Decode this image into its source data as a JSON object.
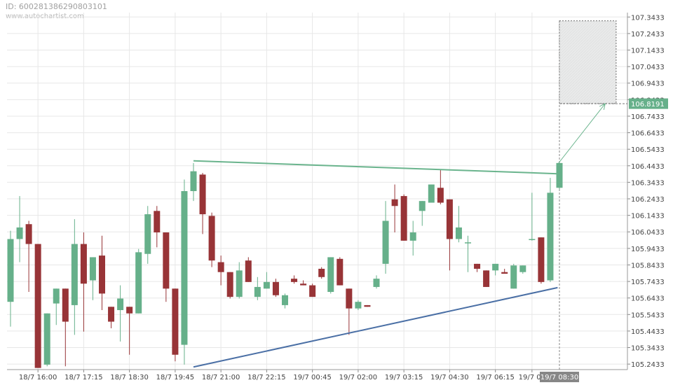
{
  "header": {
    "id_text": "ID: 600281386290803101",
    "watermark": "www.autochartist.com"
  },
  "chart_data": {
    "type": "candlestick",
    "title": "",
    "xlabel": "",
    "ylabel": "",
    "ylim": [
      105.21,
      107.37
    ],
    "y_ticks": [
      "107.3433",
      "107.2433",
      "107.1433",
      "107.0433",
      "106.9433",
      "106.8433",
      "106.7433",
      "106.6433",
      "106.5433",
      "106.4433",
      "106.3433",
      "106.2433",
      "106.1433",
      "106.0433",
      "105.9433",
      "105.8433",
      "105.7433",
      "105.6433",
      "105.5433",
      "105.4433",
      "105.3433",
      "105.2433"
    ],
    "x_ticks": [
      {
        "i": 3,
        "label": "18/7 16:00"
      },
      {
        "i": 8,
        "label": "18/7 17:15"
      },
      {
        "i": 13,
        "label": "18/7 18:30"
      },
      {
        "i": 18,
        "label": "18/7 19:45"
      },
      {
        "i": 23,
        "label": "18/7 21:00"
      },
      {
        "i": 28,
        "label": "18/7 22:15"
      },
      {
        "i": 33,
        "label": "19/7 00:45"
      },
      {
        "i": 38,
        "label": "19/7 02:00"
      },
      {
        "i": 43,
        "label": "19/7 03:15"
      },
      {
        "i": 48,
        "label": "19/7 04:30"
      },
      {
        "i": 53,
        "label": "19/7 06:15"
      },
      {
        "i": 57,
        "label": "19/7 07"
      }
    ],
    "current_time_label": "19/7 08:30",
    "candles": [
      [
        105.62,
        106.0,
        106.05,
        105.47
      ],
      [
        106.0,
        106.07,
        106.26,
        105.86
      ],
      [
        106.09,
        105.97,
        106.11,
        105.68
      ],
      [
        105.97,
        105.22,
        105.97,
        105.22
      ],
      [
        105.24,
        105.55,
        105.55,
        105.23
      ],
      [
        105.61,
        105.7,
        105.7,
        105.48
      ],
      [
        105.7,
        105.5,
        105.7,
        105.23
      ],
      [
        105.6,
        105.97,
        106.12,
        105.42
      ],
      [
        105.97,
        105.73,
        106.04,
        105.44
      ],
      [
        105.75,
        105.89,
        105.89,
        105.63
      ],
      [
        105.9,
        105.67,
        106.02,
        105.57
      ],
      [
        105.59,
        105.5,
        105.59,
        105.46
      ],
      [
        105.57,
        105.64,
        105.72,
        105.38
      ],
      [
        105.59,
        105.55,
        105.59,
        105.3
      ],
      [
        105.55,
        105.92,
        105.94,
        105.55
      ],
      [
        105.91,
        106.15,
        106.2,
        105.85
      ],
      [
        106.17,
        106.04,
        106.2,
        105.95
      ],
      [
        106.04,
        105.7,
        106.04,
        105.62
      ],
      [
        105.7,
        105.3,
        105.7,
        105.26
      ],
      [
        105.36,
        106.29,
        106.36,
        105.24
      ],
      [
        106.29,
        106.41,
        106.46,
        106.23
      ],
      [
        106.39,
        106.15,
        106.4,
        106.03
      ],
      [
        106.14,
        105.87,
        106.16,
        105.83
      ],
      [
        105.86,
        105.8,
        105.9,
        105.72
      ],
      [
        105.8,
        105.65,
        105.8,
        105.64
      ],
      [
        105.65,
        105.81,
        105.86,
        105.64
      ],
      [
        105.87,
        105.74,
        105.89,
        105.74
      ],
      [
        105.65,
        105.71,
        105.77,
        105.63
      ],
      [
        105.7,
        105.74,
        105.8,
        105.7
      ],
      [
        105.74,
        105.66,
        105.76,
        105.65
      ],
      [
        105.6,
        105.66,
        105.67,
        105.58
      ],
      [
        105.76,
        105.74,
        105.78,
        105.73
      ],
      [
        105.73,
        105.72,
        105.75,
        105.72
      ],
      [
        105.72,
        105.65,
        105.73,
        105.65
      ],
      [
        105.82,
        105.77,
        105.83,
        105.76
      ],
      [
        105.68,
        105.89,
        105.89,
        105.67
      ],
      [
        105.88,
        105.72,
        105.89,
        105.72
      ],
      [
        105.7,
        105.58,
        105.7,
        105.42
      ],
      [
        105.58,
        105.62,
        105.63,
        105.57
      ],
      [
        105.6,
        105.59,
        105.6,
        105.59
      ],
      [
        105.71,
        105.76,
        105.78,
        105.7
      ],
      [
        105.85,
        106.11,
        106.23,
        105.79
      ],
      [
        106.24,
        106.2,
        106.33,
        106.04
      ],
      [
        106.26,
        105.99,
        106.27,
        105.99
      ],
      [
        105.99,
        106.04,
        106.11,
        105.9
      ],
      [
        106.17,
        106.23,
        106.23,
        106.08
      ],
      [
        106.22,
        106.33,
        106.33,
        106.24
      ],
      [
        106.31,
        106.22,
        106.42,
        106.21
      ],
      [
        106.24,
        106.0,
        106.24,
        105.81
      ],
      [
        106.0,
        106.07,
        106.2,
        105.98
      ],
      [
        105.98,
        105.98,
        106.02,
        105.8
      ],
      [
        105.85,
        105.82,
        105.85,
        105.8
      ],
      [
        105.81,
        105.71,
        105.81,
        105.71
      ],
      [
        105.81,
        105.85,
        105.85,
        105.78
      ],
      [
        105.8,
        105.79,
        105.82,
        105.79
      ],
      [
        105.7,
        105.84,
        105.85,
        105.7
      ],
      [
        105.8,
        105.84,
        105.84,
        105.79
      ],
      [
        106.0,
        106.0,
        106.28,
        105.99
      ],
      [
        106.01,
        105.74,
        106.01,
        105.73
      ],
      [
        105.75,
        106.28,
        106.37,
        105.74
      ],
      [
        106.31,
        106.46,
        106.46,
        106.3
      ]
    ],
    "resistance_line": [
      [
        20,
        106.473
      ],
      [
        59.8,
        106.395
      ]
    ],
    "support_line": [
      [
        20,
        105.226
      ],
      [
        59.8,
        105.706
      ]
    ],
    "forecast": {
      "label": "106.8191",
      "price": 106.8191,
      "arrow_from": [
        59.8,
        106.452
      ],
      "arrow_to": [
        65,
        106.8191
      ],
      "zone_x": [
        60,
        66.2
      ],
      "zone_y": [
        106.82,
        107.32
      ]
    },
    "colors": {
      "bull": "#66b08a",
      "bear": "#983437",
      "resistance": "#6ab48d",
      "support": "#4a6fa5",
      "forecast_label_bg": "#66b08a",
      "time_label_bg": "#878787"
    },
    "grid": true,
    "legend": "none"
  }
}
